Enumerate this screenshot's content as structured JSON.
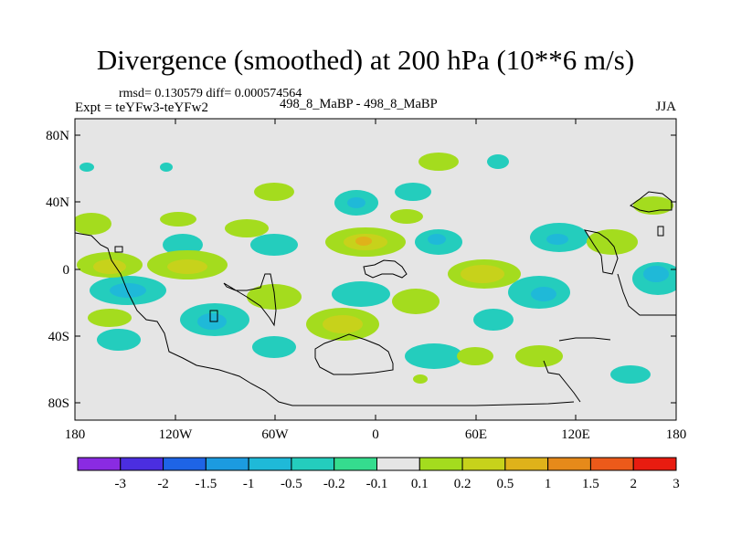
{
  "header": {
    "title": "Divergence (smoothed) at 200 hPa (10**6 m/s)",
    "stats": "rmsd= 0.130579  diff= 0.000574564",
    "experiment": "Expt = teYFw3-teYFw2",
    "case": "498_8_MaBP - 498_8_MaBP",
    "season": "JJA"
  },
  "map": {
    "background_color": "#e5e5e5",
    "coastline_color": "#000000",
    "lat_labels": [
      "80N",
      "40N",
      "0",
      "40S",
      "80S"
    ],
    "lon_labels": [
      "180",
      "120W",
      "60W",
      "0",
      "60E",
      "120E",
      "180"
    ]
  },
  "colorbar": {
    "labels": [
      "-3",
      "-2",
      "-1.5",
      "-1",
      "-0.5",
      "-0.2",
      "-0.1",
      "0.1",
      "0.2",
      "0.5",
      "1",
      "1.5",
      "2",
      "3"
    ],
    "colors": [
      "#8a2be2",
      "#4b2ee0",
      "#1e64e6",
      "#1c9be0",
      "#1fb9d8",
      "#24cdbd",
      "#35dc8e",
      "#e5e5e5",
      "#a4dc1e",
      "#c7d21b",
      "#dfb21a",
      "#e68a1a",
      "#ec5a1a",
      "#e81c10"
    ]
  }
}
